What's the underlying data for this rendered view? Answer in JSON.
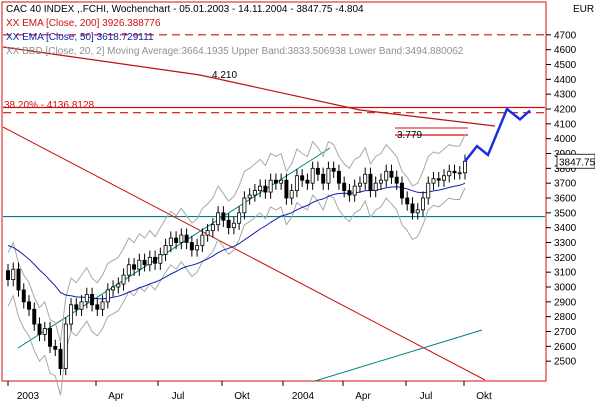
{
  "chart_data": {
    "type": "candlestick",
    "title": "CAC 40 INDEX ,.FCHI, Wochenchart - 05.01.2003 - 14.11.2004 - 3847.75",
    "title_tail": "-4.804",
    "currency_label": "EUR",
    "last_price_label": "3847.75",
    "indicators": [
      {
        "label": "XX EMA [Close, 200] 3926.388776",
        "color": "#d01010"
      },
      {
        "label": "XX EMA [Close, 50] 3618.729111",
        "color": "#1020b0"
      },
      {
        "label": "XX BBD [Close, 20, 2] Moving Average:3664.1935 Upper Band:3833.506938 Lower Band:3494.880062",
        "color": "#909090"
      }
    ],
    "y_ticks": [
      2500,
      2600,
      2700,
      2800,
      2900,
      3000,
      3100,
      3200,
      3300,
      3400,
      3500,
      3600,
      3700,
      3800,
      3900,
      4000,
      4100,
      4200,
      4300,
      4400,
      4500,
      4600,
      4700
    ],
    "ylim": [
      2400,
      4800
    ],
    "x_ticks": [
      "2003",
      "Apr",
      "Jul",
      "Okt",
      "2004",
      "Apr",
      "Jul",
      "Okt"
    ],
    "annotations": {
      "level_4210": "4.210",
      "fib_label": "38.20% - 4136.8128",
      "level_3779": "3.779"
    },
    "horizontal_levels": [
      {
        "value": 4700,
        "color": "#d01010",
        "dash": true
      },
      {
        "value": 4175,
        "color": "#d01010",
        "dash": true
      },
      {
        "value": 4210,
        "color": "#d01010",
        "dash": false
      },
      {
        "value": 3475,
        "color": "#008080",
        "dash": false
      }
    ],
    "weekly_closes": [
      3050,
      3120,
      2980,
      2900,
      2850,
      2750,
      2680,
      2720,
      2600,
      2580,
      2450,
      2750,
      2880,
      2850,
      2900,
      2950,
      2880,
      2850,
      2900,
      2980,
      3000,
      3020,
      3080,
      3150,
      3120,
      3180,
      3150,
      3200,
      3160,
      3220,
      3280,
      3330,
      3300,
      3350,
      3300,
      3250,
      3280,
      3350,
      3380,
      3420,
      3500,
      3450,
      3400,
      3430,
      3500,
      3600,
      3620,
      3650,
      3680,
      3640,
      3720,
      3700,
      3720,
      3600,
      3650,
      3750,
      3720,
      3700,
      3800,
      3760,
      3700,
      3800,
      3780,
      3700,
      3650,
      3620,
      3680,
      3700,
      3760,
      3650,
      3700,
      3720,
      3780,
      3740,
      3700,
      3600,
      3560,
      3500,
      3520,
      3600,
      3700,
      3730,
      3720,
      3750,
      3780,
      3770,
      3770,
      3847.75
    ],
    "projection": [
      3847.75,
      3950,
      3890,
      4200,
      4130,
      4190
    ]
  }
}
